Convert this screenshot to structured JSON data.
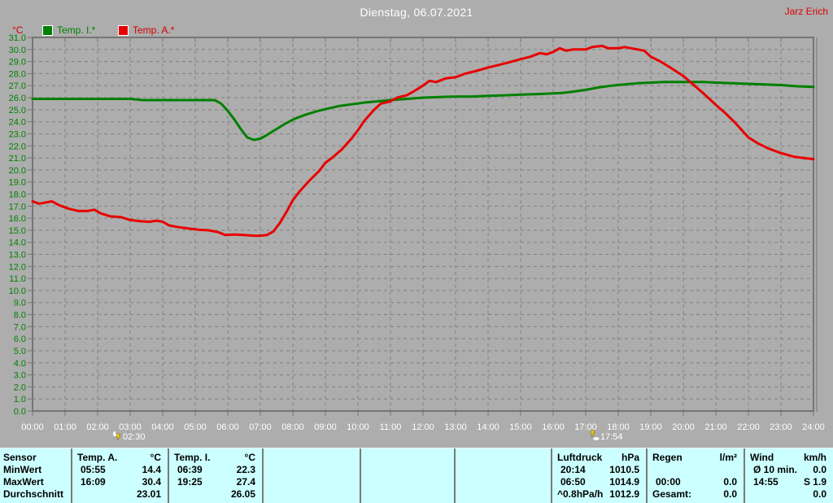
{
  "header": {
    "title": "Dienstag, 06.07.2021",
    "user": "Jarz Erich"
  },
  "legend": {
    "axis_unit": "°C",
    "items": [
      {
        "label": "Temp. I.*",
        "color": "#008000"
      },
      {
        "label": "Temp. A.*",
        "color": "#e80000"
      }
    ]
  },
  "chart_data": {
    "type": "line",
    "title": "Dienstag, 06.07.2021",
    "ylabel": "°C",
    "xlabel": "",
    "xlim": [
      0,
      24
    ],
    "ylim": [
      0,
      31
    ],
    "y_tick_step": 1.0,
    "grid": "dashed",
    "colors": {
      "background": "#adadad",
      "grid": "#818181",
      "axis": "#757575",
      "x_label": "#ffffff",
      "y_label": "#008000"
    },
    "x_ticks": [
      "00:00",
      "01:00",
      "02:00",
      "03:00",
      "04:00",
      "05:00",
      "06:00",
      "07:00",
      "08:00",
      "09:00",
      "10:00",
      "11:00",
      "12:00",
      "13:00",
      "14:00",
      "15:00",
      "16:00",
      "17:00",
      "18:00",
      "19:00",
      "20:00",
      "21:00",
      "22:00",
      "23:00",
      "24:00"
    ],
    "series": [
      {
        "id": "temp-i",
        "name": "Temp. I.*",
        "color": "#008000",
        "points": [
          [
            0,
            25.9
          ],
          [
            1,
            25.9
          ],
          [
            2,
            25.9
          ],
          [
            3,
            25.9
          ],
          [
            3.4,
            25.8
          ],
          [
            4,
            25.8
          ],
          [
            4.5,
            25.8
          ],
          [
            5,
            25.8
          ],
          [
            5.6,
            25.8
          ],
          [
            5.8,
            25.5
          ],
          [
            6.0,
            24.9
          ],
          [
            6.2,
            24.2
          ],
          [
            6.4,
            23.4
          ],
          [
            6.6,
            22.7
          ],
          [
            6.8,
            22.5
          ],
          [
            7.0,
            22.6
          ],
          [
            7.2,
            22.9
          ],
          [
            7.5,
            23.4
          ],
          [
            7.8,
            23.9
          ],
          [
            8.1,
            24.3
          ],
          [
            8.4,
            24.6
          ],
          [
            8.7,
            24.85
          ],
          [
            9.0,
            25.05
          ],
          [
            9.4,
            25.3
          ],
          [
            9.8,
            25.45
          ],
          [
            10.2,
            25.6
          ],
          [
            10.6,
            25.7
          ],
          [
            11.0,
            25.8
          ],
          [
            11.5,
            25.9
          ],
          [
            12.0,
            26.0
          ],
          [
            12.5,
            26.05
          ],
          [
            13.0,
            26.1
          ],
          [
            13.5,
            26.1
          ],
          [
            14.0,
            26.15
          ],
          [
            14.5,
            26.2
          ],
          [
            15.0,
            26.25
          ],
          [
            15.5,
            26.3
          ],
          [
            16.0,
            26.35
          ],
          [
            16.3,
            26.4
          ],
          [
            16.6,
            26.5
          ],
          [
            17.0,
            26.65
          ],
          [
            17.4,
            26.85
          ],
          [
            17.8,
            27.0
          ],
          [
            18.2,
            27.1
          ],
          [
            18.6,
            27.2
          ],
          [
            19.0,
            27.25
          ],
          [
            19.4,
            27.3
          ],
          [
            19.8,
            27.3
          ],
          [
            20.2,
            27.3
          ],
          [
            20.6,
            27.3
          ],
          [
            21.0,
            27.25
          ],
          [
            21.5,
            27.2
          ],
          [
            22.0,
            27.15
          ],
          [
            22.5,
            27.1
          ],
          [
            23.0,
            27.05
          ],
          [
            23.5,
            26.95
          ],
          [
            24.0,
            26.9
          ]
        ]
      },
      {
        "id": "temp-a",
        "name": "Temp. A.*",
        "color": "#e80000",
        "points": [
          [
            0,
            17.4
          ],
          [
            0.2,
            17.2
          ],
          [
            0.4,
            17.3
          ],
          [
            0.6,
            17.4
          ],
          [
            0.8,
            17.1
          ],
          [
            1.1,
            16.8
          ],
          [
            1.4,
            16.6
          ],
          [
            1.7,
            16.6
          ],
          [
            1.9,
            16.7
          ],
          [
            2.1,
            16.4
          ],
          [
            2.4,
            16.15
          ],
          [
            2.7,
            16.1
          ],
          [
            3.0,
            15.85
          ],
          [
            3.3,
            15.75
          ],
          [
            3.6,
            15.7
          ],
          [
            3.8,
            15.8
          ],
          [
            4.0,
            15.7
          ],
          [
            4.2,
            15.4
          ],
          [
            4.5,
            15.25
          ],
          [
            4.8,
            15.15
          ],
          [
            5.1,
            15.05
          ],
          [
            5.4,
            15.0
          ],
          [
            5.7,
            14.85
          ],
          [
            5.92,
            14.6
          ],
          [
            6.2,
            14.65
          ],
          [
            6.5,
            14.6
          ],
          [
            6.8,
            14.55
          ],
          [
            7.0,
            14.55
          ],
          [
            7.2,
            14.6
          ],
          [
            7.4,
            14.9
          ],
          [
            7.6,
            15.6
          ],
          [
            7.8,
            16.5
          ],
          [
            8.0,
            17.5
          ],
          [
            8.2,
            18.2
          ],
          [
            8.5,
            19.1
          ],
          [
            8.8,
            19.9
          ],
          [
            9.0,
            20.6
          ],
          [
            9.2,
            21.0
          ],
          [
            9.5,
            21.7
          ],
          [
            9.8,
            22.6
          ],
          [
            10.0,
            23.3
          ],
          [
            10.2,
            24.1
          ],
          [
            10.5,
            25.0
          ],
          [
            10.7,
            25.5
          ],
          [
            11.0,
            25.7
          ],
          [
            11.2,
            26.0
          ],
          [
            11.5,
            26.2
          ],
          [
            11.7,
            26.5
          ],
          [
            12.0,
            27.0
          ],
          [
            12.2,
            27.4
          ],
          [
            12.4,
            27.3
          ],
          [
            12.7,
            27.6
          ],
          [
            13.0,
            27.7
          ],
          [
            13.3,
            28.0
          ],
          [
            13.6,
            28.2
          ],
          [
            14.0,
            28.5
          ],
          [
            14.3,
            28.7
          ],
          [
            14.6,
            28.9
          ],
          [
            15.0,
            29.2
          ],
          [
            15.3,
            29.4
          ],
          [
            15.6,
            29.7
          ],
          [
            15.8,
            29.6
          ],
          [
            16.0,
            29.8
          ],
          [
            16.2,
            30.1
          ],
          [
            16.4,
            29.9
          ],
          [
            16.6,
            30.0
          ],
          [
            16.8,
            30.0
          ],
          [
            17.0,
            30.0
          ],
          [
            17.2,
            30.2
          ],
          [
            17.5,
            30.3
          ],
          [
            17.7,
            30.1
          ],
          [
            18.0,
            30.1
          ],
          [
            18.2,
            30.2
          ],
          [
            18.4,
            30.1
          ],
          [
            18.6,
            30.0
          ],
          [
            18.8,
            29.9
          ],
          [
            19.0,
            29.4
          ],
          [
            19.3,
            29.0
          ],
          [
            19.6,
            28.5
          ],
          [
            20.0,
            27.8
          ],
          [
            20.3,
            27.1
          ],
          [
            20.6,
            26.4
          ],
          [
            21.0,
            25.4
          ],
          [
            21.3,
            24.7
          ],
          [
            21.6,
            23.9
          ],
          [
            22.0,
            22.7
          ],
          [
            22.3,
            22.2
          ],
          [
            22.6,
            21.8
          ],
          [
            23.0,
            21.4
          ],
          [
            23.4,
            21.1
          ],
          [
            23.7,
            21.0
          ],
          [
            24.0,
            20.9
          ]
        ]
      }
    ],
    "markers": [
      {
        "label": "02:30",
        "hour": 2.5,
        "icon": "moon-bolt",
        "dx": -2
      },
      {
        "label": "17:54",
        "hour": 17.9,
        "icon": "bolt-moon",
        "dx": -31
      }
    ]
  },
  "summary_table": {
    "row_headers": [
      "Sensor",
      "MinWert",
      "MaxWert",
      "Durchschnitt"
    ],
    "columns": [
      {
        "id": "temp-a",
        "rows": [
          {
            "left": "Temp. A.",
            "right": "°C"
          },
          {
            "left": "05:55",
            "right": "14.4"
          },
          {
            "left": "16:09",
            "right": "30.4"
          },
          {
            "left": "",
            "right": "23.01"
          }
        ]
      },
      {
        "id": "temp-i",
        "rows": [
          {
            "left": "Temp. I.",
            "right": "°C"
          },
          {
            "left": "06:39",
            "right": "22.3"
          },
          {
            "left": "19:25",
            "right": "27.4"
          },
          {
            "left": "",
            "right": "26.05"
          }
        ]
      },
      {
        "id": "luftdruck",
        "rows": [
          {
            "left": "Luftdruck",
            "right": "hPa"
          },
          {
            "left": "20:14",
            "right": "1010.5"
          },
          {
            "left": "06:50",
            "right": "1014.9"
          },
          {
            "left": "^0.8hPa/h",
            "right": "1012.9"
          }
        ]
      },
      {
        "id": "regen",
        "rows": [
          {
            "left": "Regen",
            "right": "l/m²"
          },
          {
            "left": "",
            "right": ""
          },
          {
            "left": "00:00",
            "right": "0.0"
          },
          {
            "left": "Gesamt:",
            "right": "0.0"
          }
        ]
      },
      {
        "id": "wind",
        "rows": [
          {
            "left": "Wind",
            "right": "km/h"
          },
          {
            "left": "Ø 10 min.",
            "right": "0.0"
          },
          {
            "left": "14:55",
            "right": "S 1.9"
          },
          {
            "left": "",
            "right": "0.0"
          }
        ]
      }
    ]
  }
}
